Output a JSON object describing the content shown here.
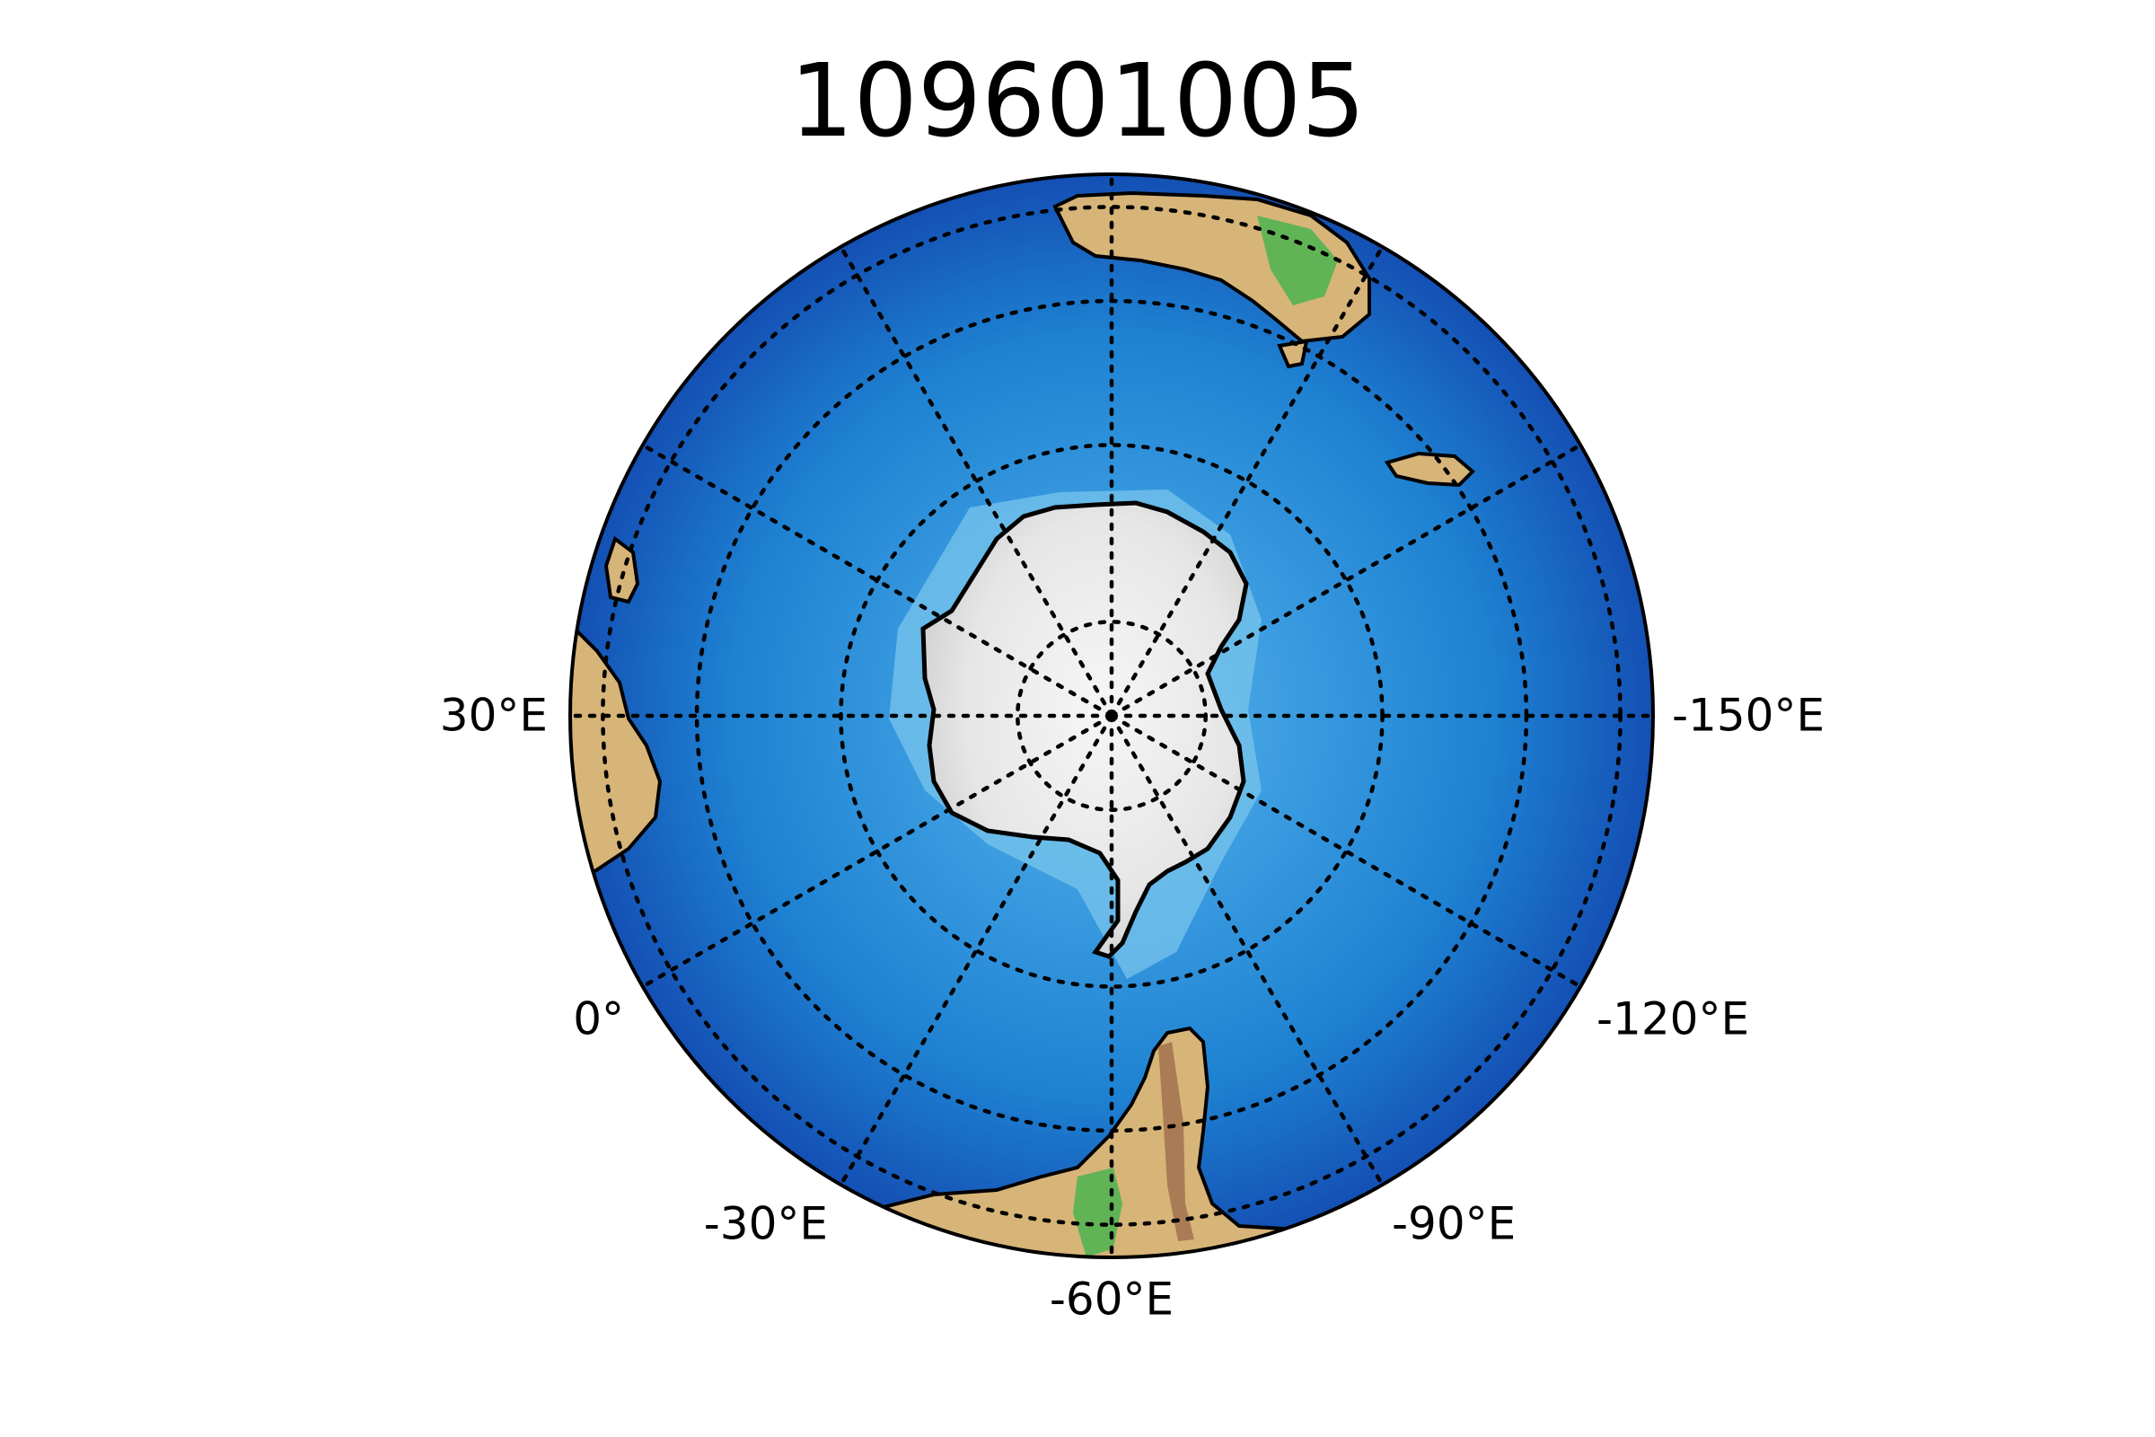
{
  "title": "109601005",
  "map": {
    "projection": "south polar orthographic",
    "center": {
      "lat": -90,
      "lon": -60
    },
    "graticule": {
      "style": "dotted",
      "color": "#000000",
      "meridian_step_deg": 30,
      "parallels_deg": [
        -80,
        -60,
        -40,
        -20
      ]
    },
    "coastline_color": "#000000",
    "colors": {
      "ocean_deep": "#1450b4",
      "ocean_mid": "#1e82d2",
      "ocean_shallow": "#5ab4e6",
      "shelf": "#a0dcf0",
      "ice": "#ececec",
      "lowland": "#d7b478",
      "vegetation": "#4cb450"
    },
    "longitude_labels": [
      {
        "key": "lon_30",
        "text": "30°E"
      },
      {
        "key": "lon_0",
        "text": "0°"
      },
      {
        "key": "lon_-30",
        "text": "-30°E"
      },
      {
        "key": "lon_-60",
        "text": "-60°E"
      },
      {
        "key": "lon_-90",
        "text": "-90°E"
      },
      {
        "key": "lon_-120",
        "text": "-120°E"
      },
      {
        "key": "lon_-150",
        "text": "-150°E"
      }
    ]
  }
}
